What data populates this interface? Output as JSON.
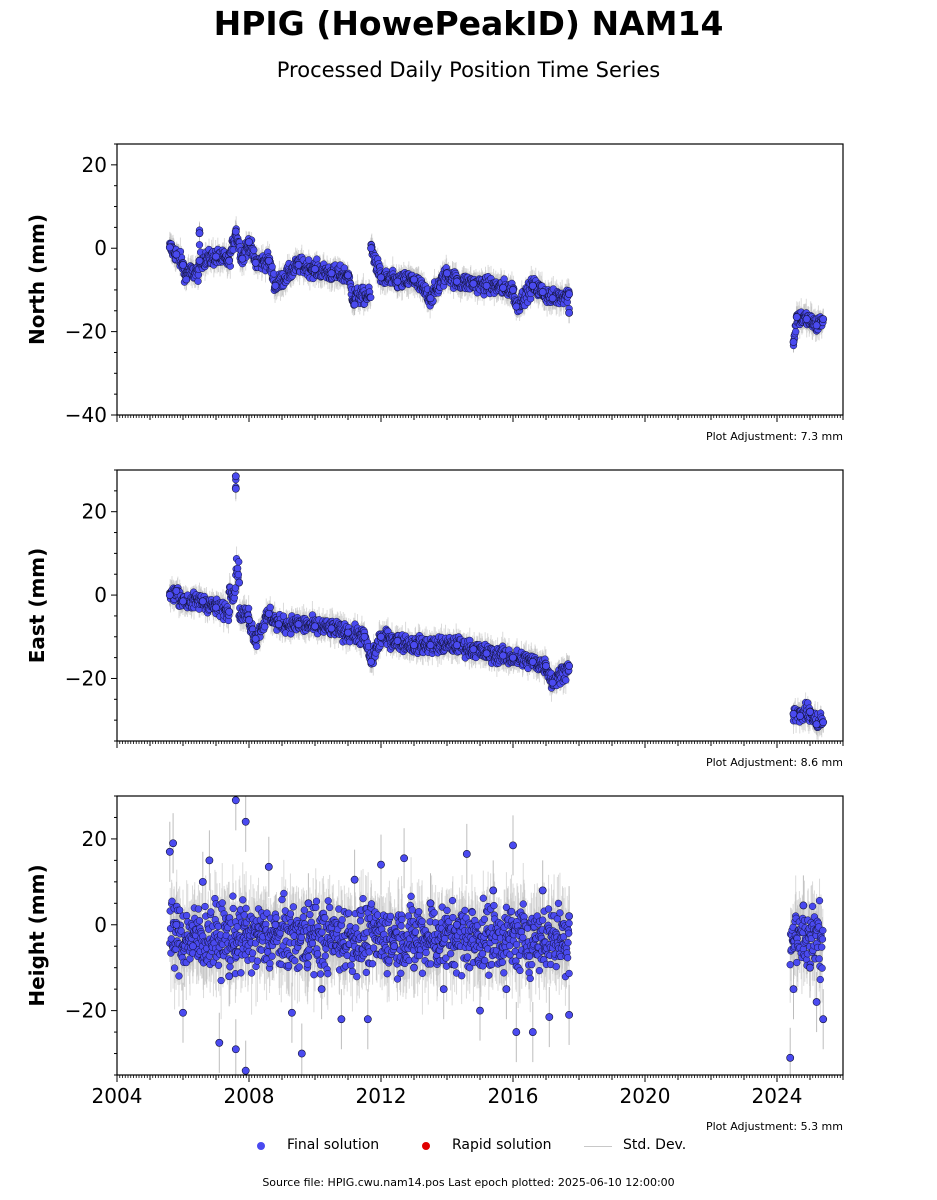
{
  "title": "HPIG (HowePeakID) NAM14",
  "subtitle": "Processed Daily Position Time Series",
  "source": "Source file: HPIG.cwu.nam14.pos  Last epoch plotted: 2025-06-10 12:00:00",
  "legend": {
    "final": "Final solution",
    "rapid": "Rapid solution",
    "std": "Std. Dev."
  },
  "colors": {
    "final_fill": "#4a4af0",
    "final_edge": "#111133",
    "rapid": "#e00000",
    "std_dev": "#bdbdbd"
  },
  "chart_data": [
    {
      "type": "scatter",
      "ylabel": "North (mm)",
      "note": "Plot Adjustment: 7.3 mm",
      "xlim": [
        2004,
        2026
      ],
      "ylim": [
        -40,
        25
      ],
      "yticks": [
        20,
        0,
        -20,
        -40
      ],
      "ytick_labels": [
        "20",
        "0",
        "−20",
        "−40"
      ],
      "series": [
        {
          "name": "Final solution",
          "points": [
            [
              2005.6,
              0.2
            ],
            [
              2005.8,
              -1.5
            ],
            [
              2006.0,
              -4.0
            ],
            [
              2006.1,
              -7.5
            ],
            [
              2006.5,
              3.6
            ],
            [
              2006.5,
              -3.0
            ],
            [
              2007.0,
              -2.0
            ],
            [
              2007.4,
              -3.0
            ],
            [
              2007.6,
              4.0
            ],
            [
              2007.8,
              -2.5
            ],
            [
              2008.0,
              1.5
            ],
            [
              2008.2,
              -3.5
            ],
            [
              2008.6,
              -3.0
            ],
            [
              2008.8,
              -9.0
            ],
            [
              2009.5,
              -4.0
            ],
            [
              2010.0,
              -5.0
            ],
            [
              2010.5,
              -6.0
            ],
            [
              2011.0,
              -6.5
            ],
            [
              2011.2,
              -13.5
            ],
            [
              2011.7,
              0.0
            ],
            [
              2012.0,
              -7.0
            ],
            [
              2012.5,
              -8.0
            ],
            [
              2013.0,
              -7.5
            ],
            [
              2013.5,
              -12.0
            ],
            [
              2014.0,
              -6.0
            ],
            [
              2014.3,
              -8.0
            ],
            [
              2014.8,
              -8.5
            ],
            [
              2015.2,
              -9.0
            ],
            [
              2015.7,
              -9.5
            ],
            [
              2016.0,
              -10.0
            ],
            [
              2016.1,
              -14.0
            ],
            [
              2016.6,
              -9.0
            ],
            [
              2016.9,
              -10.5
            ],
            [
              2017.2,
              -12.0
            ],
            [
              2017.7,
              -11.0
            ],
            [
              2017.7,
              -15.5
            ],
            [
              2024.5,
              -22.5
            ],
            [
              2024.6,
              -16.5
            ],
            [
              2024.9,
              -17.0
            ],
            [
              2025.2,
              -18.5
            ],
            [
              2025.4,
              -17.0
            ]
          ]
        }
      ],
      "gaps": "no observations 2017.8–2024.4"
    },
    {
      "type": "scatter",
      "ylabel": "East (mm)",
      "note": "Plot Adjustment: 8.6 mm",
      "xlim": [
        2004,
        2026
      ],
      "ylim": [
        -35,
        30
      ],
      "yticks": [
        20,
        0,
        -20
      ],
      "ytick_labels": [
        "20",
        "0",
        "−20"
      ],
      "series": [
        {
          "name": "Final solution",
          "points": [
            [
              2005.6,
              0.0
            ],
            [
              2005.8,
              1.0
            ],
            [
              2006.0,
              -1.5
            ],
            [
              2006.6,
              -1.5
            ],
            [
              2007.0,
              -3.0
            ],
            [
              2007.4,
              -4.0
            ],
            [
              2007.6,
              28.5
            ],
            [
              2007.6,
              25.5
            ],
            [
              2007.7,
              3.0
            ],
            [
              2008.0,
              -6.0
            ],
            [
              2008.2,
              -10.5
            ],
            [
              2008.6,
              -4.5
            ],
            [
              2008.9,
              -7.0
            ],
            [
              2009.5,
              -7.0
            ],
            [
              2010.0,
              -7.5
            ],
            [
              2010.5,
              -8.0
            ],
            [
              2011.0,
              -9.0
            ],
            [
              2011.5,
              -10.0
            ],
            [
              2011.7,
              -16.0
            ],
            [
              2012.0,
              -10.0
            ],
            [
              2012.5,
              -11.0
            ],
            [
              2013.0,
              -12.0
            ],
            [
              2013.5,
              -12.0
            ],
            [
              2014.3,
              -12.0
            ],
            [
              2014.8,
              -13.0
            ],
            [
              2015.2,
              -14.0
            ],
            [
              2015.7,
              -14.5
            ],
            [
              2016.0,
              -15.0
            ],
            [
              2016.6,
              -16.0
            ],
            [
              2017.0,
              -17.0
            ],
            [
              2017.2,
              -21.0
            ],
            [
              2017.7,
              -17.0
            ],
            [
              2024.5,
              -28.5
            ],
            [
              2024.7,
              -29.0
            ],
            [
              2025.0,
              -28.0
            ],
            [
              2025.2,
              -31.0
            ],
            [
              2025.4,
              -30.5
            ]
          ]
        }
      ]
    },
    {
      "type": "scatter",
      "ylabel": "Height (mm)",
      "note": "Plot Adjustment: 5.3 mm",
      "xlim": [
        2004,
        2026
      ],
      "ylim": [
        -35,
        30
      ],
      "yticks": [
        20,
        0,
        -20
      ],
      "ytick_labels": [
        "20",
        "0",
        "−20"
      ],
      "xticks": [
        2004,
        2008,
        2012,
        2016,
        2020,
        2024
      ],
      "xtick_labels": [
        "2004",
        "2008",
        "2012",
        "2016",
        "2020",
        "2024"
      ],
      "series": [
        {
          "name": "Final solution",
          "points": [
            [
              2005.6,
              17.0
            ],
            [
              2005.7,
              19.0
            ],
            [
              2005.8,
              0.0
            ],
            [
              2006.0,
              -20.5
            ],
            [
              2006.3,
              -5.0
            ],
            [
              2006.6,
              10.0
            ],
            [
              2006.8,
              15.0
            ],
            [
              2007.1,
              -27.5
            ],
            [
              2007.4,
              -12.0
            ],
            [
              2007.6,
              29.0
            ],
            [
              2007.6,
              -29.0
            ],
            [
              2007.9,
              24.0
            ],
            [
              2007.9,
              -34.0
            ],
            [
              2008.6,
              13.5
            ],
            [
              2008.8,
              0.0
            ],
            [
              2009.3,
              -20.5
            ],
            [
              2009.6,
              -30.0
            ],
            [
              2009.8,
              5.0
            ],
            [
              2010.2,
              -15.0
            ],
            [
              2010.8,
              -22.0
            ],
            [
              2011.2,
              10.5
            ],
            [
              2011.6,
              -22.0
            ],
            [
              2012.0,
              14.0
            ],
            [
              2012.4,
              -5.0
            ],
            [
              2012.7,
              15.5
            ],
            [
              2013.0,
              -10.0
            ],
            [
              2013.5,
              5.0
            ],
            [
              2013.9,
              -15.0
            ],
            [
              2014.3,
              0.0
            ],
            [
              2014.6,
              16.5
            ],
            [
              2015.0,
              -20.0
            ],
            [
              2015.4,
              8.0
            ],
            [
              2015.8,
              -15.0
            ],
            [
              2016.0,
              18.5
            ],
            [
              2016.1,
              -25.0
            ],
            [
              2016.6,
              -25.0
            ],
            [
              2016.9,
              8.0
            ],
            [
              2017.1,
              -21.5
            ],
            [
              2017.7,
              -21.0
            ],
            [
              2017.7,
              2.0
            ],
            [
              2024.4,
              -31.0
            ],
            [
              2024.5,
              -15.0
            ],
            [
              2024.8,
              4.5
            ],
            [
              2025.0,
              -10.0
            ],
            [
              2025.2,
              -18.0
            ],
            [
              2025.4,
              -22.0
            ]
          ]
        }
      ]
    }
  ]
}
